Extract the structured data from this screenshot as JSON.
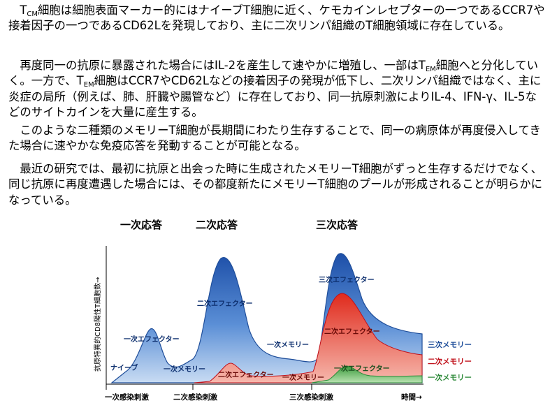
{
  "paragraphs": [
    {
      "pre": "T",
      "sub": "CM",
      "text": "細胞は細胞表面マーカー的にはナイーブT細胞に近く、ケモカインレセプターの一つであるCCR7や接着因子の一つであるCD62Lを発現しており、主に二次リンパ組織のT細胞領域に存在している。"
    },
    {
      "parts": [
        {
          "t": "再度同一の抗原に暴露された場合にはIL-2を産生して速やかに増殖し、一部はT"
        },
        {
          "sub": "EM"
        },
        {
          "t": "細胞へと分化していく。一方で、T"
        },
        {
          "sub": "EM"
        },
        {
          "t": "細胞はCCR7やCD62Lなどの接着因子の発現が低下し、二次リンパ組織ではなく、主に炎症の局所（例えば、肺、肝臓や腸管など）に存在しており、同一抗原刺激によりIL-4、IFN-γ、IL-5などのサイトカインを大量に産生する。"
        }
      ]
    },
    {
      "text": "このような二種類のメモリーT細胞が長期間にわたり生存することで、同一の病原体が再度侵入してきた場合に速やかな免疫応答を発動することが可能となる。"
    },
    {
      "text": "最近の研究では、最初に抗原と出会った時に生成されたメモリーT細胞がずっと生存するだけでなく、同じ抗原に再度遭遇した場合には、その都度新たにメモリーT細胞のプールが形成されることが明らかになっている。"
    }
  ],
  "chart_data": {
    "type": "area",
    "title": "",
    "ylabel": "抗原特異的CD8陽性T細胞数→",
    "xlabel": "時間→",
    "phases": [
      "一次応答",
      "二次応答",
      "三次応答"
    ],
    "x_ticks": [
      "一次感染刺激",
      "二次感染刺激",
      "三次感染刺激"
    ],
    "curve_labels": {
      "naive": "ナイーブ",
      "effector1": "一次エフェクター",
      "memory1_a": "一次メモリー",
      "effector2": "二次エフェクター",
      "effector2_small": "二次エフェクター",
      "memory1_b": "一次メモリー",
      "effector3": "三次エフェクター",
      "effector2_b": "二次エフェクター",
      "effector1_b": "一次エフェクター"
    },
    "legend": [
      {
        "label": "三次メモリー",
        "color": "#1f4e9a"
      },
      {
        "label": "二次メモリー",
        "color": "#c0101a"
      },
      {
        "label": "一次メモリー",
        "color": "#2e8b3a"
      }
    ],
    "colors": {
      "blue": "#3f72c6",
      "red": "#e0402e",
      "green": "#56b04a"
    }
  }
}
